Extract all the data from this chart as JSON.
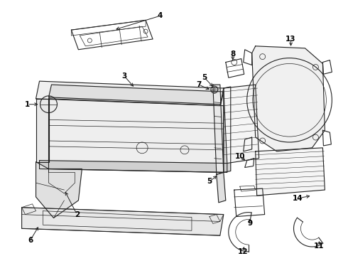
{
  "background_color": "#ffffff",
  "line_color": "#222222",
  "label_color": "#000000",
  "figsize": [
    4.9,
    3.6
  ],
  "dpi": 100,
  "lw": 0.8
}
